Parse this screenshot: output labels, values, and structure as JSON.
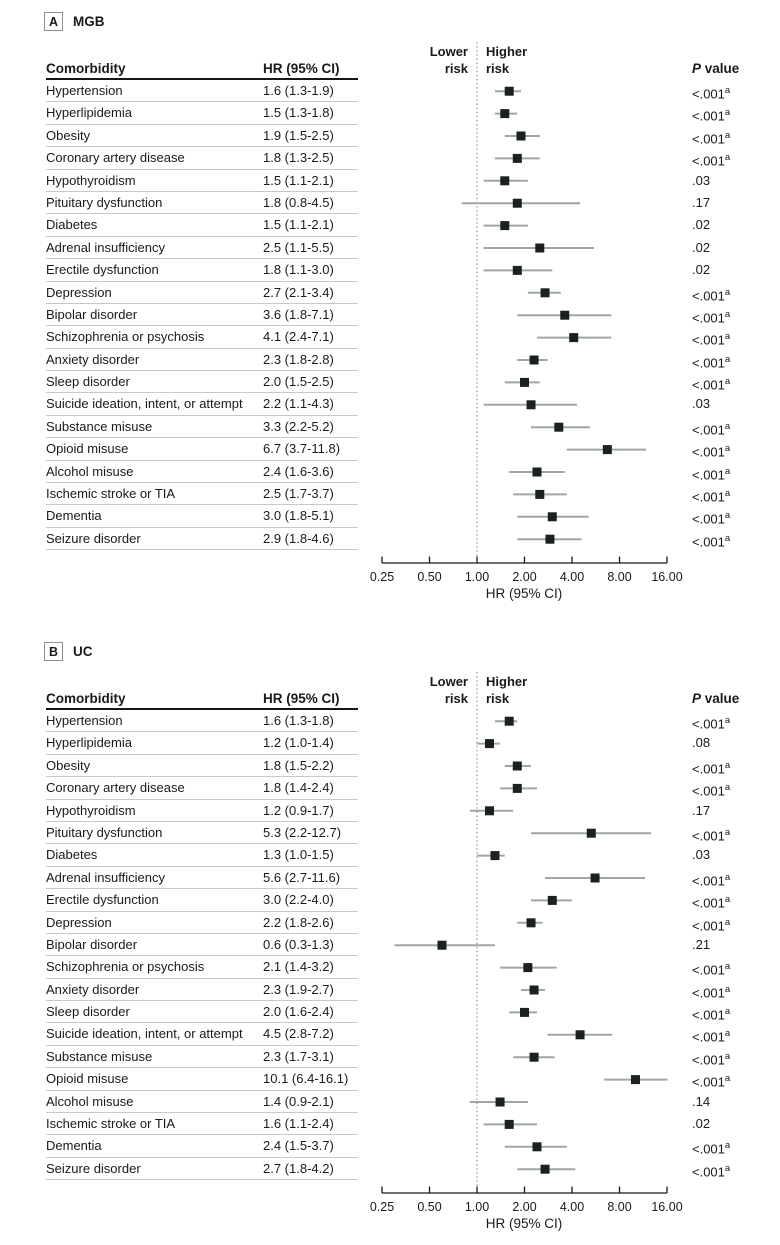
{
  "style": {
    "marker": "#1b2021",
    "ci_line": "#9fa6a6",
    "reference_line": "#7d7d7d",
    "axis": "#1a1a1a",
    "row_rule": "#c6c9c9",
    "header_rule": "#161616",
    "text": "#1a1a1a"
  },
  "chart_data": [
    {
      "type": "forest",
      "panel_label": "A",
      "title": "MGB",
      "xlabel": "HR (95% CI)",
      "x_scale": "log2",
      "x_range": [
        0.25,
        16
      ],
      "x_ticks": [
        0.25,
        0.5,
        1,
        2,
        4,
        8,
        16
      ],
      "x_tick_labels": [
        "0.25",
        "0.50",
        "1.00",
        "2.00",
        "4.00",
        "8.00",
        "16.00"
      ],
      "reference_line": 1.0,
      "columns": {
        "comorbidity": "Comorbidity",
        "hr_ci": "HR (95% CI)",
        "p": "P value"
      },
      "region_labels": {
        "left": "Lower risk",
        "right": "Higher risk"
      },
      "rows": [
        {
          "name": "Hypertension",
          "hr": 1.6,
          "lo": 1.3,
          "hi": 1.9,
          "hr_ci": "1.6 (1.3-1.9)",
          "p": "<.001",
          "p_sup": "a"
        },
        {
          "name": "Hyperlipidemia",
          "hr": 1.5,
          "lo": 1.3,
          "hi": 1.8,
          "hr_ci": "1.5 (1.3-1.8)",
          "p": "<.001",
          "p_sup": "a"
        },
        {
          "name": "Obesity",
          "hr": 1.9,
          "lo": 1.5,
          "hi": 2.5,
          "hr_ci": "1.9 (1.5-2.5)",
          "p": "<.001",
          "p_sup": "a"
        },
        {
          "name": "Coronary artery disease",
          "hr": 1.8,
          "lo": 1.3,
          "hi": 2.5,
          "hr_ci": "1.8 (1.3-2.5)",
          "p": "<.001",
          "p_sup": "a"
        },
        {
          "name": "Hypothyroidism",
          "hr": 1.5,
          "lo": 1.1,
          "hi": 2.1,
          "hr_ci": "1.5 (1.1-2.1)",
          "p": ".03",
          "p_sup": ""
        },
        {
          "name": "Pituitary dysfunction",
          "hr": 1.8,
          "lo": 0.8,
          "hi": 4.5,
          "hr_ci": "1.8 (0.8-4.5)",
          "p": ".17",
          "p_sup": ""
        },
        {
          "name": "Diabetes",
          "hr": 1.5,
          "lo": 1.1,
          "hi": 2.1,
          "hr_ci": "1.5 (1.1-2.1)",
          "p": ".02",
          "p_sup": ""
        },
        {
          "name": "Adrenal insufficiency",
          "hr": 2.5,
          "lo": 1.1,
          "hi": 5.5,
          "hr_ci": "2.5 (1.1-5.5)",
          "p": ".02",
          "p_sup": ""
        },
        {
          "name": "Erectile dysfunction",
          "hr": 1.8,
          "lo": 1.1,
          "hi": 3.0,
          "hr_ci": "1.8 (1.1-3.0)",
          "p": ".02",
          "p_sup": ""
        },
        {
          "name": "Depression",
          "hr": 2.7,
          "lo": 2.1,
          "hi": 3.4,
          "hr_ci": "2.7 (2.1-3.4)",
          "p": "<.001",
          "p_sup": "a"
        },
        {
          "name": "Bipolar disorder",
          "hr": 3.6,
          "lo": 1.8,
          "hi": 7.1,
          "hr_ci": "3.6 (1.8-7.1)",
          "p": "<.001",
          "p_sup": "a"
        },
        {
          "name": "Schizophrenia or psychosis",
          "hr": 4.1,
          "lo": 2.4,
          "hi": 7.1,
          "hr_ci": "4.1 (2.4-7.1)",
          "p": "<.001",
          "p_sup": "a"
        },
        {
          "name": "Anxiety disorder",
          "hr": 2.3,
          "lo": 1.8,
          "hi": 2.8,
          "hr_ci": "2.3 (1.8-2.8)",
          "p": "<.001",
          "p_sup": "a"
        },
        {
          "name": "Sleep disorder",
          "hr": 2.0,
          "lo": 1.5,
          "hi": 2.5,
          "hr_ci": "2.0 (1.5-2.5)",
          "p": "<.001",
          "p_sup": "a"
        },
        {
          "name": "Suicide ideation, intent, or attempt",
          "hr": 2.2,
          "lo": 1.1,
          "hi": 4.3,
          "hr_ci": "2.2 (1.1-4.3)",
          "p": ".03",
          "p_sup": ""
        },
        {
          "name": "Substance misuse",
          "hr": 3.3,
          "lo": 2.2,
          "hi": 5.2,
          "hr_ci": "3.3 (2.2-5.2)",
          "p": "<.001",
          "p_sup": "a"
        },
        {
          "name": "Opioid misuse",
          "hr": 6.7,
          "lo": 3.7,
          "hi": 11.8,
          "hr_ci": "6.7 (3.7-11.8)",
          "p": "<.001",
          "p_sup": "a"
        },
        {
          "name": "Alcohol misuse",
          "hr": 2.4,
          "lo": 1.6,
          "hi": 3.6,
          "hr_ci": "2.4 (1.6-3.6)",
          "p": "<.001",
          "p_sup": "a"
        },
        {
          "name": "Ischemic stroke or TIA",
          "hr": 2.5,
          "lo": 1.7,
          "hi": 3.7,
          "hr_ci": "2.5 (1.7-3.7)",
          "p": "<.001",
          "p_sup": "a"
        },
        {
          "name": "Dementia",
          "hr": 3.0,
          "lo": 1.8,
          "hi": 5.1,
          "hr_ci": "3.0 (1.8-5.1)",
          "p": "<.001",
          "p_sup": "a"
        },
        {
          "name": "Seizure disorder",
          "hr": 2.9,
          "lo": 1.8,
          "hi": 4.6,
          "hr_ci": "2.9 (1.8-4.6)",
          "p": "<.001",
          "p_sup": "a"
        }
      ]
    },
    {
      "type": "forest",
      "panel_label": "B",
      "title": "UC",
      "xlabel": "HR (95% CI)",
      "x_scale": "log2",
      "x_range": [
        0.25,
        16
      ],
      "x_ticks": [
        0.25,
        0.5,
        1,
        2,
        4,
        8,
        16
      ],
      "x_tick_labels": [
        "0.25",
        "0.50",
        "1.00",
        "2.00",
        "4.00",
        "8.00",
        "16.00"
      ],
      "reference_line": 1.0,
      "columns": {
        "comorbidity": "Comorbidity",
        "hr_ci": "HR (95% CI)",
        "p": "P value"
      },
      "region_labels": {
        "left": "Lower risk",
        "right": "Higher risk"
      },
      "rows": [
        {
          "name": "Hypertension",
          "hr": 1.6,
          "lo": 1.3,
          "hi": 1.8,
          "hr_ci": "1.6 (1.3-1.8)",
          "p": "<.001",
          "p_sup": "a"
        },
        {
          "name": "Hyperlipidemia",
          "hr": 1.2,
          "lo": 1.0,
          "hi": 1.4,
          "hr_ci": "1.2 (1.0-1.4)",
          "p": ".08",
          "p_sup": ""
        },
        {
          "name": "Obesity",
          "hr": 1.8,
          "lo": 1.5,
          "hi": 2.2,
          "hr_ci": "1.8 (1.5-2.2)",
          "p": "<.001",
          "p_sup": "a"
        },
        {
          "name": "Coronary artery disease",
          "hr": 1.8,
          "lo": 1.4,
          "hi": 2.4,
          "hr_ci": "1.8 (1.4-2.4)",
          "p": "<.001",
          "p_sup": "a"
        },
        {
          "name": "Hypothyroidism",
          "hr": 1.2,
          "lo": 0.9,
          "hi": 1.7,
          "hr_ci": "1.2 (0.9-1.7)",
          "p": ".17",
          "p_sup": ""
        },
        {
          "name": "Pituitary dysfunction",
          "hr": 5.3,
          "lo": 2.2,
          "hi": 12.7,
          "hr_ci": "5.3 (2.2-12.7)",
          "p": "<.001",
          "p_sup": "a"
        },
        {
          "name": "Diabetes",
          "hr": 1.3,
          "lo": 1.0,
          "hi": 1.5,
          "hr_ci": "1.3 (1.0-1.5)",
          "p": ".03",
          "p_sup": ""
        },
        {
          "name": "Adrenal insufficiency",
          "hr": 5.6,
          "lo": 2.7,
          "hi": 11.6,
          "hr_ci": "5.6 (2.7-11.6)",
          "p": "<.001",
          "p_sup": "a"
        },
        {
          "name": "Erectile dysfunction",
          "hr": 3.0,
          "lo": 2.2,
          "hi": 4.0,
          "hr_ci": "3.0 (2.2-4.0)",
          "p": "<.001",
          "p_sup": "a"
        },
        {
          "name": "Depression",
          "hr": 2.2,
          "lo": 1.8,
          "hi": 2.6,
          "hr_ci": "2.2 (1.8-2.6)",
          "p": "<.001",
          "p_sup": "a"
        },
        {
          "name": "Bipolar disorder",
          "hr": 0.6,
          "lo": 0.3,
          "hi": 1.3,
          "hr_ci": "0.6 (0.3-1.3)",
          "p": ".21",
          "p_sup": ""
        },
        {
          "name": "Schizophrenia or psychosis",
          "hr": 2.1,
          "lo": 1.4,
          "hi": 3.2,
          "hr_ci": "2.1 (1.4-3.2)",
          "p": "<.001",
          "p_sup": "a"
        },
        {
          "name": "Anxiety disorder",
          "hr": 2.3,
          "lo": 1.9,
          "hi": 2.7,
          "hr_ci": "2.3 (1.9-2.7)",
          "p": "<.001",
          "p_sup": "a"
        },
        {
          "name": "Sleep disorder",
          "hr": 2.0,
          "lo": 1.6,
          "hi": 2.4,
          "hr_ci": "2.0 (1.6-2.4)",
          "p": "<.001",
          "p_sup": "a"
        },
        {
          "name": "Suicide ideation, intent, or attempt",
          "hr": 4.5,
          "lo": 2.8,
          "hi": 7.2,
          "hr_ci": "4.5 (2.8-7.2)",
          "p": "<.001",
          "p_sup": "a"
        },
        {
          "name": "Substance misuse",
          "hr": 2.3,
          "lo": 1.7,
          "hi": 3.1,
          "hr_ci": "2.3 (1.7-3.1)",
          "p": "<.001",
          "p_sup": "a"
        },
        {
          "name": "Opioid misuse",
          "hr": 10.1,
          "lo": 6.4,
          "hi": 16.1,
          "hr_ci": "10.1 (6.4-16.1)",
          "p": "<.001",
          "p_sup": "a"
        },
        {
          "name": "Alcohol misuse",
          "hr": 1.4,
          "lo": 0.9,
          "hi": 2.1,
          "hr_ci": "1.4 (0.9-2.1)",
          "p": ".14",
          "p_sup": ""
        },
        {
          "name": "Ischemic stroke or TIA",
          "hr": 1.6,
          "lo": 1.1,
          "hi": 2.4,
          "hr_ci": "1.6 (1.1-2.4)",
          "p": ".02",
          "p_sup": ""
        },
        {
          "name": "Dementia",
          "hr": 2.4,
          "lo": 1.5,
          "hi": 3.7,
          "hr_ci": "2.4 (1.5-3.7)",
          "p": "<.001",
          "p_sup": "a"
        },
        {
          "name": "Seizure disorder",
          "hr": 2.7,
          "lo": 1.8,
          "hi": 4.2,
          "hr_ci": "2.7 (1.8-4.2)",
          "p": "<.001",
          "p_sup": "a"
        }
      ]
    }
  ]
}
